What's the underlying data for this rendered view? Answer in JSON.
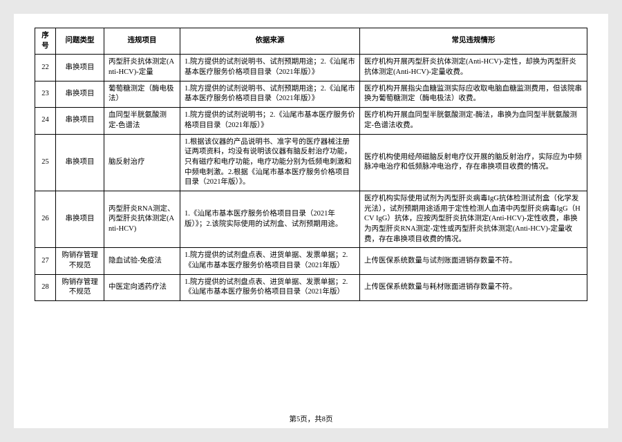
{
  "headers": {
    "seq": "序号",
    "type": "问题类型",
    "item": "违规项目",
    "basis": "依据来源",
    "violation": "常见违规情形"
  },
  "rows": [
    {
      "seq": "22",
      "type": "串换项目",
      "item": "丙型肝炎抗体测定(Anti-HCV)-定量",
      "basis": "1.院方提供的试剂说明书、试剂预期用途；2.《汕尾市基本医疗服务价格项目目录（2021年版）》",
      "violation": "医疗机构开展丙型肝炎抗体测定(Anti-HCV)-定性，却换为丙型肝炎抗体测定(Anti-HCV)-定量收费。"
    },
    {
      "seq": "23",
      "type": "串换项目",
      "item": "葡萄糖测定（酶电极法）",
      "basis": "1.院方提供的试剂说明书、试剂预期用途；2.《汕尾市基本医疗服务价格项目目录（2021年版）》",
      "violation": "医疗机构开展指尖血糖监测实际应收取电脑血糖监测费用，但该院串换为葡萄糖测定（酶电极法）收费。"
    },
    {
      "seq": "24",
      "type": "串换项目",
      "item": "血同型半胱氨酸测定-色谱法",
      "basis": "1.院方提供的试剂说明书；2.《汕尾市基本医疗服务价格项目目录（2021年版）》",
      "violation": "医疗机构开展血同型半胱氨酸测定-酶法，串换为血同型半胱氨酸测定-色谱法收费。"
    },
    {
      "seq": "25",
      "type": "串换项目",
      "item": "脑反射治疗",
      "basis": "1.根据该仪器的产品说明书、准字号的医疗器械注册证两项资料，均没有说明该仪器有脑反射治疗功能，只有磁疗和电疗功能，电疗功能分别为低频电刺激和中频电刺激。2.根据《汕尾市基本医疗服务价格项目目录（2021年版）》。",
      "violation": "医疗机构使用经颅磁脑反射电疗仪开展的脑反射治疗，实际应为中频脉冲电治疗和低频脉冲电治疗，存在串换项目收费的情况。"
    },
    {
      "seq": "26",
      "type": "串换项目",
      "item": "丙型肝炎RNA测定、丙型肝炎抗体测定(Anti-HCV)",
      "basis": "1.《汕尾市基本医疗服务价格项目目录（2021年版）》；2.该院实际使用的试剂盒、试剂预期用途。",
      "violation": "医疗机构实际使用试剂为丙型肝炎病毒IgG抗体检测试剂盒（化学发光法），试剂预期用途适用于定性检测人血清中丙型肝炎病毒IgG（HCV IgG）抗体，应按丙型肝炎抗体测定(Anti-HCV)-定性收费，串换为丙型肝炎RNA测定-定性或丙型肝炎抗体测定(Anti-HCV)-定量收费，存在串换项目收费的情况。"
    },
    {
      "seq": "27",
      "type": "购销存管理不规范",
      "item": "隐血试验-免疫法",
      "basis": "1.院方提供的试剂盘点表、进货单据、发票单据；2.《汕尾市基本医疗服务价格项目目录（2021年版）",
      "violation": "上传医保系统数量与试剂账面进销存数量不符。"
    },
    {
      "seq": "28",
      "type": "购销存管理不规范",
      "item": "中医定向透药疗法",
      "basis": "1.院方提供的试剂盘点表、进货单据、发票单据；2.《汕尾市基本医疗服务价格项目目录（2021年版）",
      "violation": "上传医保系统数量与耗材账面进销存数量不符。"
    }
  ],
  "footer": "第5页，共8页"
}
